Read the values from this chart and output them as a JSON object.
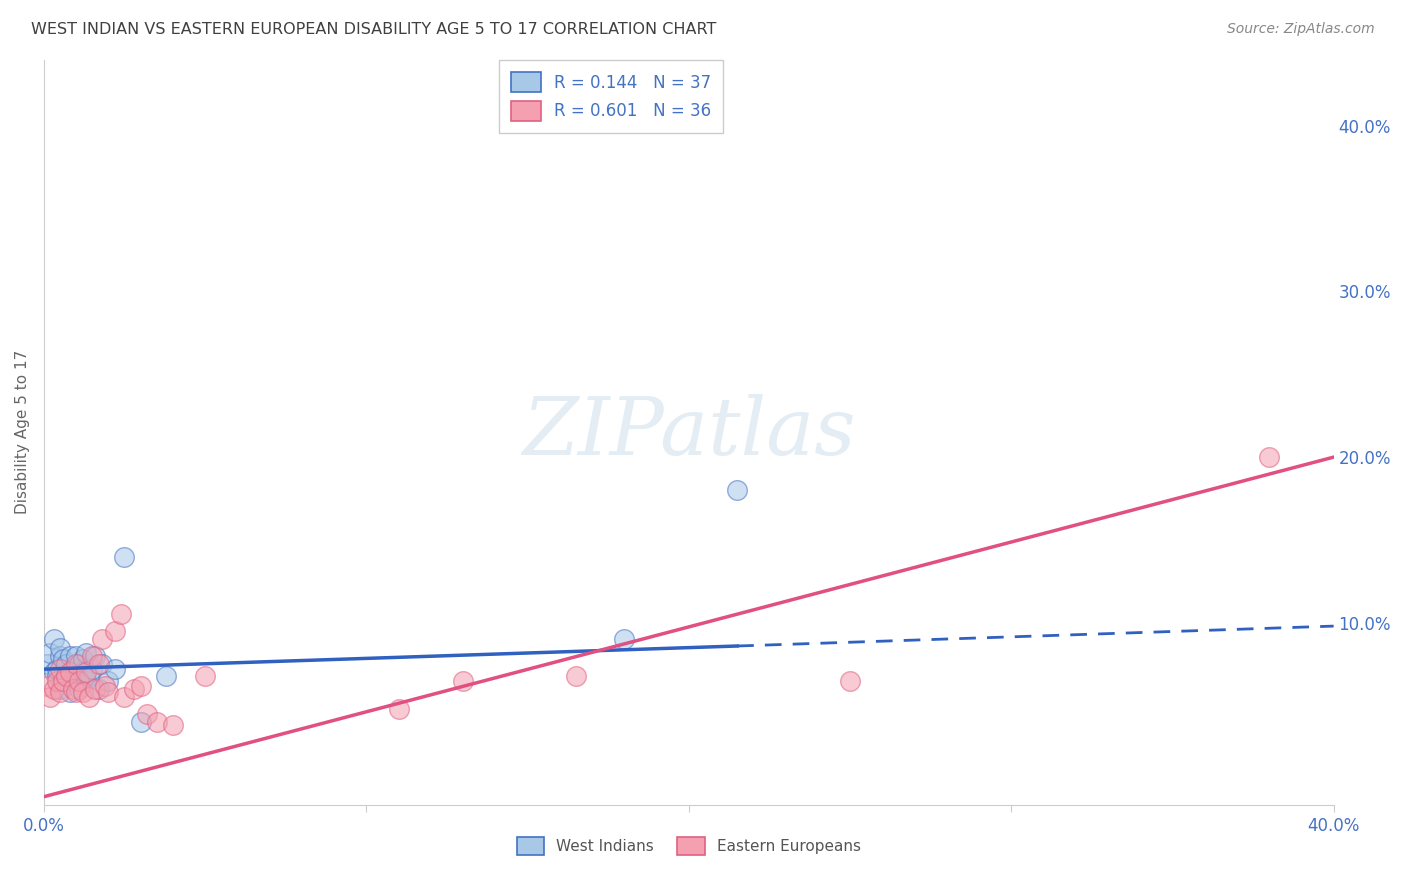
{
  "title": "WEST INDIAN VS EASTERN EUROPEAN DISABILITY AGE 5 TO 17 CORRELATION CHART",
  "source": "Source: ZipAtlas.com",
  "ylabel": "Disability Age 5 to 17",
  "xlim": [
    0.0,
    0.4
  ],
  "ylim": [
    -0.01,
    0.44
  ],
  "xticks": [
    0.0,
    0.1,
    0.2,
    0.3,
    0.4
  ],
  "yticks": [
    0.0,
    0.1,
    0.2,
    0.3,
    0.4
  ],
  "ytick_labels_right": [
    "",
    "10.0%",
    "20.0%",
    "30.0%",
    "40.0%"
  ],
  "xtick_labels": [
    "0.0%",
    "",
    "",
    "",
    "40.0%"
  ],
  "legend_r1": "R = 0.144",
  "legend_n1": "N = 37",
  "legend_r2": "R = 0.601",
  "legend_n2": "N = 36",
  "blue_scatter_color": "#a8c8e8",
  "blue_edge_color": "#4472C4",
  "pink_scatter_color": "#f4a0b0",
  "pink_edge_color": "#E06080",
  "blue_line_color": "#3060C0",
  "pink_line_color": "#E05080",
  "watermark_color": "#d8e8f0",
  "background_color": "#ffffff",
  "grid_color": "#d0d0d0",
  "title_color": "#404040",
  "axis_label_color": "#4472C4",
  "west_indian_x": [
    0.001,
    0.002,
    0.003,
    0.003,
    0.004,
    0.004,
    0.005,
    0.005,
    0.005,
    0.006,
    0.006,
    0.007,
    0.007,
    0.008,
    0.008,
    0.009,
    0.009,
    0.01,
    0.01,
    0.011,
    0.011,
    0.012,
    0.012,
    0.013,
    0.013,
    0.014,
    0.015,
    0.016,
    0.017,
    0.018,
    0.02,
    0.022,
    0.025,
    0.03,
    0.038,
    0.18,
    0.215
  ],
  "west_indian_y": [
    0.075,
    0.082,
    0.07,
    0.09,
    0.072,
    0.068,
    0.08,
    0.06,
    0.085,
    0.065,
    0.078,
    0.075,
    0.068,
    0.08,
    0.058,
    0.072,
    0.065,
    0.08,
    0.068,
    0.06,
    0.075,
    0.07,
    0.078,
    0.065,
    0.082,
    0.068,
    0.072,
    0.08,
    0.06,
    0.075,
    0.065,
    0.072,
    0.14,
    0.04,
    0.068,
    0.09,
    0.18
  ],
  "eastern_european_x": [
    0.001,
    0.002,
    0.003,
    0.004,
    0.005,
    0.005,
    0.006,
    0.007,
    0.008,
    0.009,
    0.01,
    0.01,
    0.011,
    0.012,
    0.013,
    0.014,
    0.015,
    0.016,
    0.017,
    0.018,
    0.019,
    0.02,
    0.022,
    0.024,
    0.025,
    0.028,
    0.03,
    0.032,
    0.035,
    0.04,
    0.05,
    0.11,
    0.13,
    0.165,
    0.25,
    0.38
  ],
  "eastern_european_y": [
    0.062,
    0.055,
    0.06,
    0.065,
    0.058,
    0.072,
    0.065,
    0.068,
    0.07,
    0.06,
    0.058,
    0.075,
    0.065,
    0.058,
    0.07,
    0.055,
    0.08,
    0.06,
    0.075,
    0.09,
    0.062,
    0.058,
    0.095,
    0.105,
    0.055,
    0.06,
    0.062,
    0.045,
    0.04,
    0.038,
    0.068,
    0.048,
    0.065,
    0.068,
    0.065,
    0.2
  ],
  "wi_line_x_start": 0.0,
  "wi_line_x_solid_end": 0.215,
  "wi_line_x_dash_end": 0.4,
  "wi_line_y_at_0": 0.072,
  "wi_line_y_at_40": 0.098,
  "ee_line_x_start": 0.0,
  "ee_line_x_end": 0.4,
  "ee_line_y_at_0": -0.005,
  "ee_line_y_at_40": 0.2
}
